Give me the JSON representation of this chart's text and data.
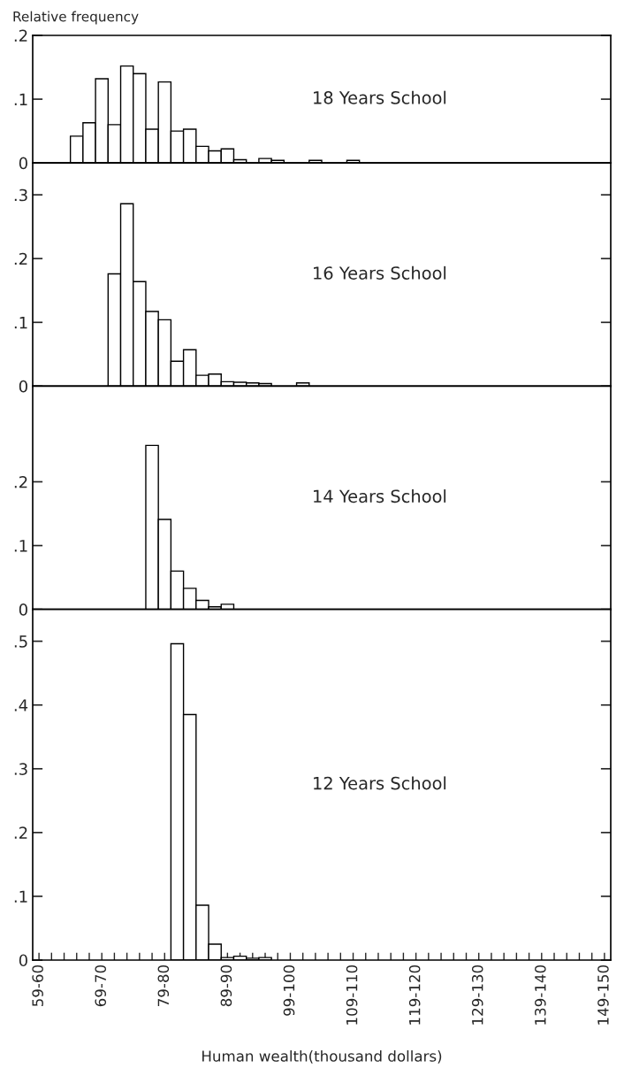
{
  "chart_data": [
    {
      "type": "bar",
      "title": "18 Years School",
      "ylabel": "Relative frequency",
      "color": "#ffffff",
      "categories": [
        null,
        null,
        null,
        null,
        null,
        null,
        null,
        null,
        null,
        null,
        null,
        null,
        null,
        null,
        null,
        null,
        null,
        null,
        null,
        null,
        null,
        null,
        null,
        null,
        null,
        null,
        null,
        null,
        null,
        null,
        null,
        null,
        null,
        null,
        null,
        null,
        null,
        null,
        null,
        null,
        null,
        null,
        null,
        null,
        null,
        null
      ],
      "values": [
        null,
        null,
        null,
        0.042,
        0.063,
        0.132,
        0.06,
        0.152,
        0.14,
        0.053,
        0.127,
        0.05,
        0.053,
        0.026,
        0.019,
        0.022,
        0.005,
        null,
        0.007,
        0.004,
        null,
        null,
        0.004,
        null,
        null,
        0.004,
        null,
        null,
        null,
        null,
        null,
        null,
        null,
        null,
        null,
        null,
        null,
        null,
        null,
        null,
        null,
        null,
        null,
        null,
        null,
        null
      ],
      "ylim": [
        0,
        0.2
      ],
      "yticks": [
        0,
        {
          "value": 0.1,
          "label": ".1"
        },
        {
          "value": 0.2,
          "label": ".2"
        }
      ],
      "tick_labels": "y"
    },
    {
      "type": "bar",
      "title": "16 Years School",
      "color": "#ffffff",
      "categories": [
        null,
        null,
        null,
        null,
        null,
        null,
        null,
        null,
        null,
        null,
        null,
        null,
        null,
        null,
        null,
        null,
        null,
        null,
        null,
        null,
        null,
        null,
        null,
        null,
        null,
        null,
        null,
        null,
        null,
        null,
        null,
        null,
        null,
        null,
        null,
        null,
        null,
        null,
        null,
        null,
        null,
        null,
        null,
        null,
        null,
        null
      ],
      "values": [
        null,
        null,
        null,
        null,
        null,
        null,
        0.176,
        0.286,
        0.164,
        0.117,
        0.104,
        0.039,
        0.057,
        0.017,
        0.019,
        0.007,
        0.006,
        0.005,
        0.004,
        null,
        null,
        0.005,
        null,
        null,
        null,
        null,
        null,
        null,
        null,
        null,
        null,
        null,
        null,
        null,
        null,
        null,
        null,
        null,
        null,
        null,
        null,
        null,
        null,
        null,
        null,
        null
      ],
      "ylim": [
        0,
        0.35
      ],
      "yticks": [
        0,
        {
          "value": 0.1,
          "label": ".1"
        },
        {
          "value": 0.2,
          "label": ".2"
        },
        {
          "value": 0.3,
          "label": ".3"
        }
      ],
      "tick_labels": "y"
    },
    {
      "type": "bar",
      "title": "14 Years School",
      "color": "#ffffff",
      "categories": [
        null,
        null,
        null,
        null,
        null,
        null,
        null,
        null,
        null,
        null,
        null,
        null,
        null,
        null,
        null,
        null,
        null,
        null,
        null,
        null,
        null,
        null,
        null,
        null,
        null,
        null,
        null,
        null,
        null,
        null,
        null,
        null,
        null,
        null,
        null,
        null,
        null,
        null,
        null,
        null,
        null,
        null,
        null,
        null,
        null,
        null
      ],
      "values": [
        null,
        null,
        null,
        null,
        null,
        null,
        null,
        null,
        null,
        0.257,
        0.141,
        0.06,
        0.033,
        0.014,
        0.004,
        0.008,
        null,
        null,
        null,
        null,
        null,
        null,
        null,
        null,
        null,
        null,
        null,
        null,
        null,
        null,
        null,
        null,
        null,
        null,
        null,
        null,
        null,
        null,
        null,
        null,
        null,
        null,
        null,
        null,
        null,
        null
      ],
      "ylim": [
        0,
        0.35
      ],
      "yticks": [
        0,
        {
          "value": 0.1,
          "label": ".1"
        },
        {
          "value": 0.2,
          "label": ".2"
        }
      ],
      "tick_labels": "y"
    },
    {
      "type": "bar",
      "title": "12 Years School",
      "xlabel": "Human wealth(thousand dollars)",
      "color": "#ffffff",
      "categories": [
        "59-60",
        null,
        null,
        null,
        null,
        "69-70",
        null,
        null,
        null,
        null,
        "79-80",
        null,
        null,
        null,
        null,
        "89-90",
        null,
        null,
        null,
        null,
        "99-100",
        null,
        null,
        null,
        null,
        "109-110",
        null,
        null,
        null,
        null,
        "119-120",
        null,
        null,
        null,
        null,
        "129-130",
        null,
        null,
        null,
        null,
        "139-140",
        null,
        null,
        null,
        null,
        "149-150"
      ],
      "values": [
        null,
        null,
        null,
        null,
        null,
        null,
        null,
        null,
        null,
        null,
        null,
        0.496,
        0.385,
        0.086,
        0.025,
        0.004,
        0.006,
        0.003,
        0.004,
        null,
        null,
        null,
        null,
        null,
        null,
        null,
        null,
        null,
        null,
        null,
        null,
        null,
        null,
        null,
        null,
        null,
        null,
        null,
        null,
        null,
        null,
        null,
        null,
        null,
        null,
        null
      ],
      "ylim": [
        0,
        0.55
      ],
      "yticks": [
        0,
        {
          "value": 0.1,
          "label": ".1"
        },
        {
          "value": 0.2,
          "label": ".2"
        },
        {
          "value": 0.3,
          "label": ".3"
        },
        {
          "value": 0.4,
          "label": ".4"
        },
        {
          "value": 0.5,
          "label": ".5"
        }
      ]
    }
  ]
}
